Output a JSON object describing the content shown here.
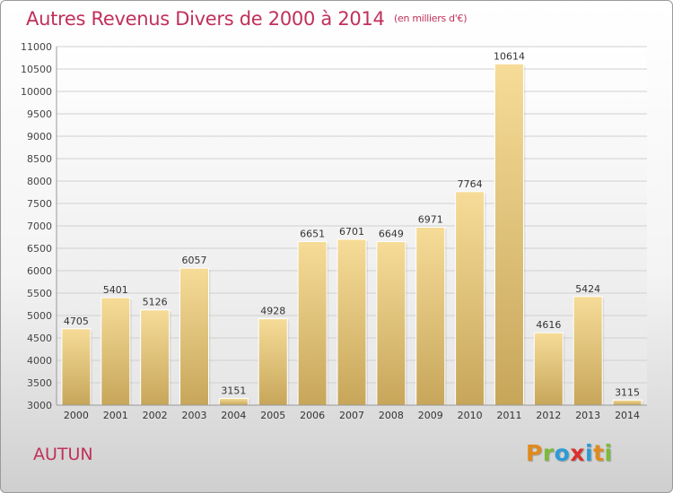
{
  "title": "Autres Revenus Divers de 2000 à 2014",
  "subtitle": "(en milliers d'€)",
  "location": "AUTUN",
  "brand": {
    "letters": [
      "P",
      "r",
      "o",
      "x",
      "i",
      "t",
      "i"
    ],
    "colors": [
      "#e08a1e",
      "#7cba3a",
      "#2c9bd6",
      "#d9302e",
      "#2c9bd6",
      "#e08a1e",
      "#7cba3a"
    ]
  },
  "colors": {
    "title": "#c0305a",
    "bar_top": "#f6dc98",
    "bar_bottom": "#c7a65a",
    "grid": "#d0d0d0"
  },
  "chart_data": {
    "type": "bar",
    "categories": [
      "2000",
      "2001",
      "2002",
      "2003",
      "2004",
      "2005",
      "2006",
      "2007",
      "2008",
      "2009",
      "2010",
      "2011",
      "2012",
      "2013",
      "2014"
    ],
    "values": [
      4705,
      5401,
      5126,
      6057,
      3151,
      4928,
      6651,
      6701,
      6649,
      6971,
      7764,
      10614,
      4616,
      5424,
      3115
    ],
    "yticks": [
      3000,
      3500,
      4000,
      4500,
      5000,
      5500,
      6000,
      6500,
      7000,
      7500,
      8000,
      8500,
      9000,
      9500,
      10000,
      10500,
      11000
    ],
    "ylim": [
      3000,
      11000
    ],
    "grid": true
  }
}
